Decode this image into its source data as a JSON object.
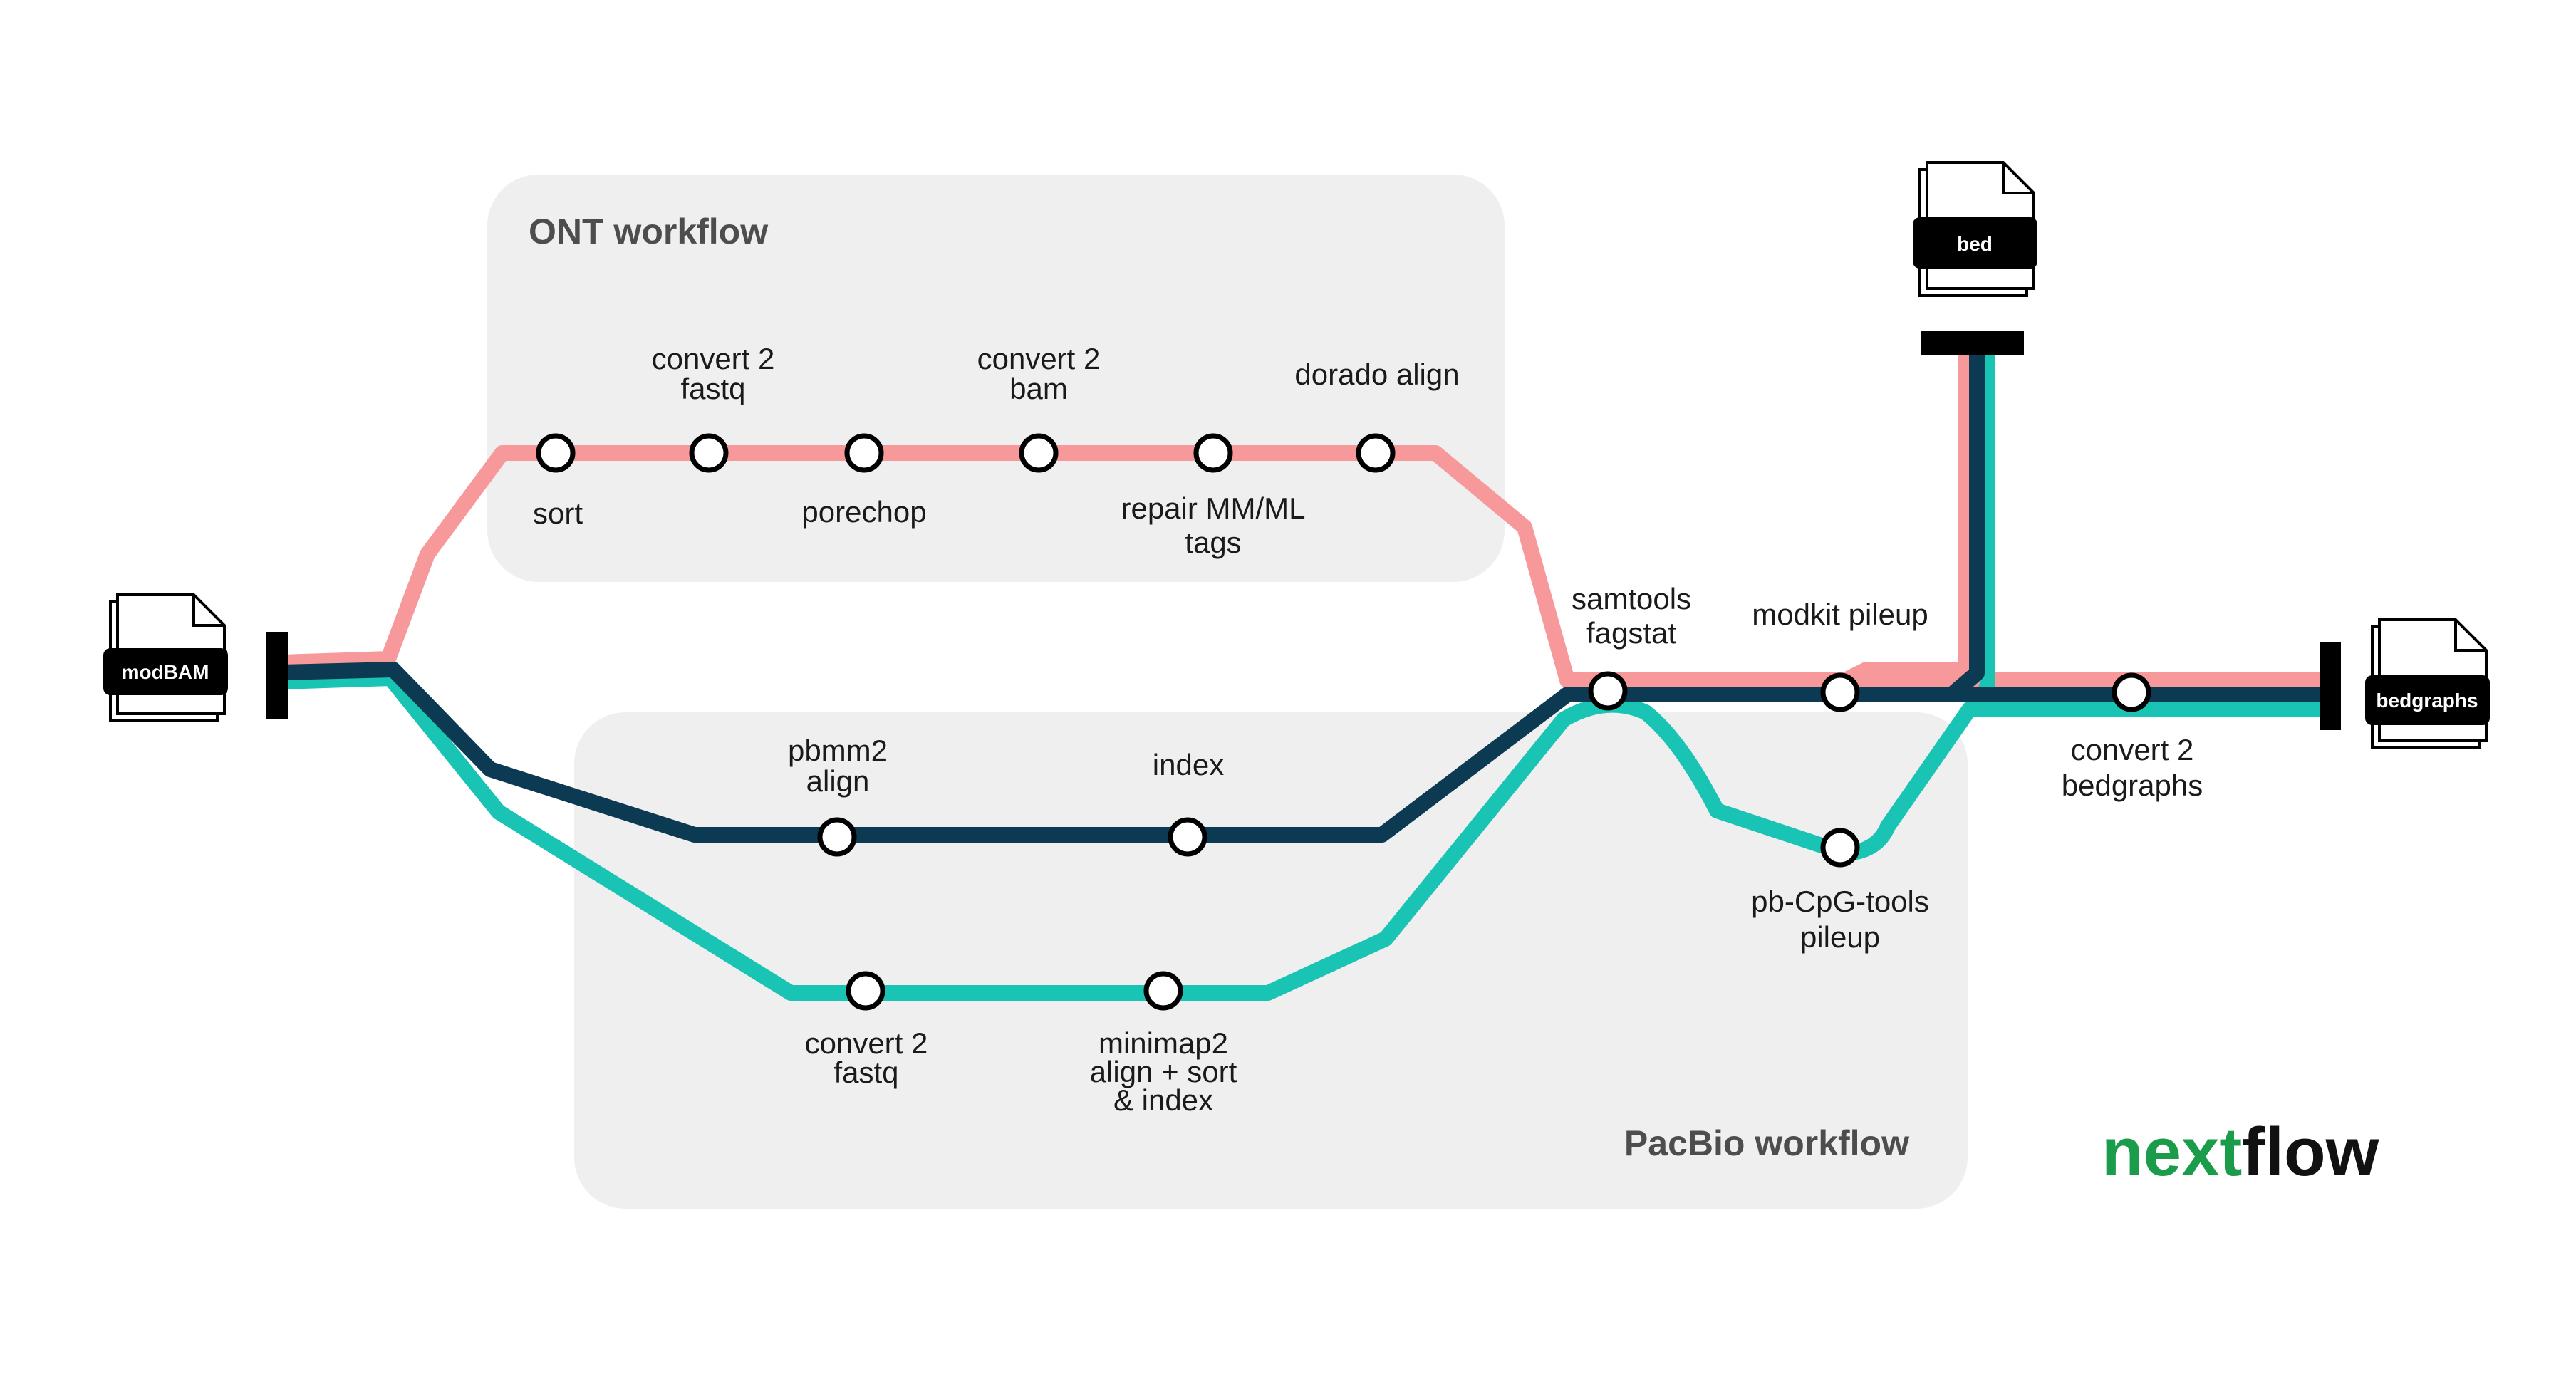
{
  "colors": {
    "ont": "#f7999b",
    "pacbio_pbmm2": "#0c3a52",
    "pacbio_minimap2": "#19c4b5",
    "panel_bg": "#efefef",
    "logo_green": "#1a9c4b",
    "logo_black": "#111111"
  },
  "panels": {
    "ont_title": "ONT workflow",
    "pacbio_title": "PacBio workflow"
  },
  "files": {
    "input": "modBAM",
    "bed": "bed",
    "bedgraphs": "bedgraphs"
  },
  "steps": {
    "ont": [
      {
        "id": "sort",
        "label": [
          "sort"
        ]
      },
      {
        "id": "convert-2-fastq",
        "label": [
          "convert 2",
          "fastq"
        ]
      },
      {
        "id": "porechop",
        "label": [
          "porechop"
        ]
      },
      {
        "id": "convert-2-bam",
        "label": [
          "convert 2",
          "bam"
        ]
      },
      {
        "id": "repair-mm-ml-tags",
        "label": [
          "repair MM/ML",
          "tags"
        ]
      },
      {
        "id": "dorado-align",
        "label": [
          "dorado align"
        ]
      }
    ],
    "pacbio_pbmm2": [
      {
        "id": "pbmm2-align",
        "label": [
          "pbmm2",
          "align"
        ]
      },
      {
        "id": "index",
        "label": [
          "index"
        ]
      }
    ],
    "pacbio_minimap2": [
      {
        "id": "convert-2-fastq-pacbio",
        "label": [
          "convert 2",
          "fastq"
        ]
      },
      {
        "id": "minimap2-align-sort-index",
        "label": [
          "minimap2",
          "align + sort",
          "& index"
        ]
      }
    ],
    "shared": [
      {
        "id": "samtools-fagstat",
        "label": [
          "samtools",
          "fagstat"
        ]
      },
      {
        "id": "modkit-pileup",
        "label": [
          "modkit pileup"
        ]
      },
      {
        "id": "pb-cpg-tools-pileup",
        "label": [
          "pb-CpG-tools",
          "pileup"
        ]
      },
      {
        "id": "convert-2-bedgraphs",
        "label": [
          "convert 2",
          "bedgraphs"
        ]
      }
    ]
  },
  "logo": {
    "part1": "next",
    "part2": "flow"
  }
}
